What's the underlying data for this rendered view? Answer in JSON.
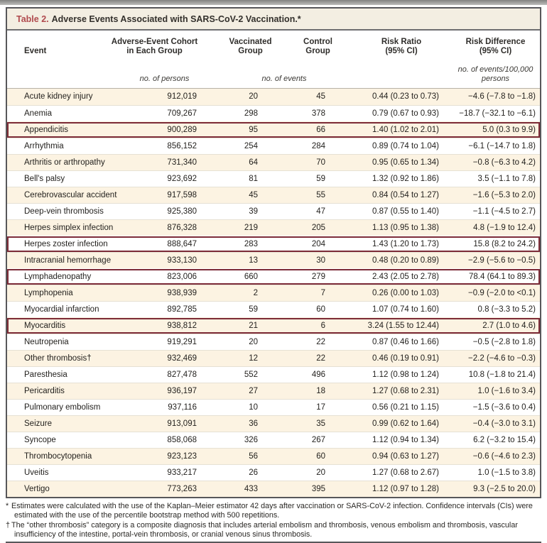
{
  "title": {
    "label": "Table 2.",
    "text": "Adverse Events Associated with SARS-CoV-2 Vaccination.*"
  },
  "columns": {
    "event": "Event",
    "cohort": [
      "Adverse-Event Cohort",
      "in Each Group"
    ],
    "vaccinated": [
      "Vaccinated",
      "Group"
    ],
    "control": [
      "Control",
      "Group"
    ],
    "risk_ratio": [
      "Risk Ratio",
      "(95% CI)"
    ],
    "risk_difference": [
      "Risk Difference",
      "(95% CI)"
    ]
  },
  "units": {
    "cohort": "no. of persons",
    "events": "no. of events",
    "risk_difference_line1": "no. of events/100,000",
    "risk_difference_line2": "persons"
  },
  "rows": [
    {
      "event": "Acute kidney injury",
      "cohort": "912,019",
      "vaccinated": "20",
      "control": "45",
      "risk_ratio": "0.44 (0.23 to 0.73)",
      "risk_difference": "−4.6 (−7.8 to −1.8)",
      "highlighted": false
    },
    {
      "event": "Anemia",
      "cohort": "709,267",
      "vaccinated": "298",
      "control": "378",
      "risk_ratio": "0.79 (0.67 to 0.93)",
      "risk_difference": "−18.7 (−32.1 to −6.1)",
      "highlighted": false
    },
    {
      "event": "Appendicitis",
      "cohort": "900,289",
      "vaccinated": "95",
      "control": "66",
      "risk_ratio": "1.40 (1.02 to 2.01)",
      "risk_difference": "5.0 (0.3 to 9.9)",
      "highlighted": true
    },
    {
      "event": "Arrhythmia",
      "cohort": "856,152",
      "vaccinated": "254",
      "control": "284",
      "risk_ratio": "0.89 (0.74 to 1.04)",
      "risk_difference": "−6.1 (−14.7 to 1.8)",
      "highlighted": false
    },
    {
      "event": "Arthritis or arthropathy",
      "cohort": "731,340",
      "vaccinated": "64",
      "control": "70",
      "risk_ratio": "0.95 (0.65 to 1.34)",
      "risk_difference": "−0.8 (−6.3 to 4.2)",
      "highlighted": false
    },
    {
      "event": "Bell's palsy",
      "cohort": "923,692",
      "vaccinated": "81",
      "control": "59",
      "risk_ratio": "1.32 (0.92 to 1.86)",
      "risk_difference": "3.5 (−1.1 to 7.8)",
      "highlighted": false
    },
    {
      "event": "Cerebrovascular accident",
      "cohort": "917,598",
      "vaccinated": "45",
      "control": "55",
      "risk_ratio": "0.84 (0.54 to 1.27)",
      "risk_difference": "−1.6 (−5.3 to 2.0)",
      "highlighted": false
    },
    {
      "event": "Deep-vein thrombosis",
      "cohort": "925,380",
      "vaccinated": "39",
      "control": "47",
      "risk_ratio": "0.87 (0.55 to 1.40)",
      "risk_difference": "−1.1 (−4.5 to 2.7)",
      "highlighted": false
    },
    {
      "event": "Herpes simplex infection",
      "cohort": "876,328",
      "vaccinated": "219",
      "control": "205",
      "risk_ratio": "1.13 (0.95 to 1.38)",
      "risk_difference": "4.8 (−1.9 to 12.4)",
      "highlighted": false
    },
    {
      "event": "Herpes zoster infection",
      "cohort": "888,647",
      "vaccinated": "283",
      "control": "204",
      "risk_ratio": "1.43 (1.20 to 1.73)",
      "risk_difference": "15.8 (8.2 to 24.2)",
      "highlighted": true
    },
    {
      "event": "Intracranial hemorrhage",
      "cohort": "933,130",
      "vaccinated": "13",
      "control": "30",
      "risk_ratio": "0.48 (0.20 to 0.89)",
      "risk_difference": "−2.9 (−5.6 to −0.5)",
      "highlighted": false
    },
    {
      "event": "Lymphadenopathy",
      "cohort": "823,006",
      "vaccinated": "660",
      "control": "279",
      "risk_ratio": "2.43 (2.05 to 2.78)",
      "risk_difference": "78.4 (64.1 to 89.3)",
      "highlighted": true
    },
    {
      "event": "Lymphopenia",
      "cohort": "938,939",
      "vaccinated": "2",
      "control": "7",
      "risk_ratio": "0.26 (0.00 to 1.03)",
      "risk_difference": "−0.9 (−2.0 to <0.1)",
      "highlighted": false
    },
    {
      "event": "Myocardial infarction",
      "cohort": "892,785",
      "vaccinated": "59",
      "control": "60",
      "risk_ratio": "1.07 (0.74 to 1.60)",
      "risk_difference": "0.8 (−3.3 to 5.2)",
      "highlighted": false
    },
    {
      "event": "Myocarditis",
      "cohort": "938,812",
      "vaccinated": "21",
      "control": "6",
      "risk_ratio": "3.24 (1.55 to 12.44)",
      "risk_difference": "2.7 (1.0 to 4.6)",
      "highlighted": true
    },
    {
      "event": "Neutropenia",
      "cohort": "919,291",
      "vaccinated": "20",
      "control": "22",
      "risk_ratio": "0.87 (0.46 to 1.66)",
      "risk_difference": "−0.5 (−2.8 to 1.8)",
      "highlighted": false
    },
    {
      "event": "Other thrombosis†",
      "cohort": "932,469",
      "vaccinated": "12",
      "control": "22",
      "risk_ratio": "0.46 (0.19 to 0.91)",
      "risk_difference": "−2.2 (−4.6 to −0.3)",
      "highlighted": false
    },
    {
      "event": "Paresthesia",
      "cohort": "827,478",
      "vaccinated": "552",
      "control": "496",
      "risk_ratio": "1.12 (0.98 to 1.24)",
      "risk_difference": "10.8 (−1.8 to 21.4)",
      "highlighted": false
    },
    {
      "event": "Pericarditis",
      "cohort": "936,197",
      "vaccinated": "27",
      "control": "18",
      "risk_ratio": "1.27 (0.68 to 2.31)",
      "risk_difference": "1.0 (−1.6 to 3.4)",
      "highlighted": false
    },
    {
      "event": "Pulmonary embolism",
      "cohort": "937,116",
      "vaccinated": "10",
      "control": "17",
      "risk_ratio": "0.56 (0.21 to 1.15)",
      "risk_difference": "−1.5 (−3.6 to 0.4)",
      "highlighted": false
    },
    {
      "event": "Seizure",
      "cohort": "913,091",
      "vaccinated": "36",
      "control": "35",
      "risk_ratio": "0.99 (0.62 to 1.64)",
      "risk_difference": "−0.4 (−3.0 to 3.1)",
      "highlighted": false
    },
    {
      "event": "Syncope",
      "cohort": "858,068",
      "vaccinated": "326",
      "control": "267",
      "risk_ratio": "1.12 (0.94 to 1.34)",
      "risk_difference": "6.2 (−3.2 to 15.4)",
      "highlighted": false
    },
    {
      "event": "Thrombocytopenia",
      "cohort": "923,123",
      "vaccinated": "56",
      "control": "60",
      "risk_ratio": "0.94 (0.63 to 1.27)",
      "risk_difference": "−0.6 (−4.6 to 2.3)",
      "highlighted": false
    },
    {
      "event": "Uveitis",
      "cohort": "933,217",
      "vaccinated": "26",
      "control": "20",
      "risk_ratio": "1.27 (0.68 to 2.67)",
      "risk_difference": "1.0 (−1.5 to 3.8)",
      "highlighted": false
    },
    {
      "event": "Vertigo",
      "cohort": "773,263",
      "vaccinated": "433",
      "control": "395",
      "risk_ratio": "1.12 (0.97 to 1.28)",
      "risk_difference": "9.3 (−2.5 to 20.0)",
      "highlighted": false
    }
  ],
  "footnotes": [
    {
      "marker": "*",
      "text": "Estimates were calculated with the use of the Kaplan–Meier estimator 42 days after vaccination or SARS-CoV-2 infection. Confidence intervals (CIs) were estimated with the use of the percentile bootstrap method with 500 repetitions."
    },
    {
      "marker": "†",
      "text": "The “other thrombosis” category is a composite diagnosis that includes arterial embolism and thrombosis, venous embolism and thrombosis, vascular insufficiency of the intestine, portal-vein thrombosis, or cranial venous sinus thrombosis."
    }
  ],
  "colors": {
    "table_label_red": "#b04a4e",
    "highlight_box_maroon": "#7c2b37",
    "shaded_row_cream": "#fcf3e2",
    "frame_border_gray": "#57575a",
    "title_band_background": "#f3eee2"
  }
}
